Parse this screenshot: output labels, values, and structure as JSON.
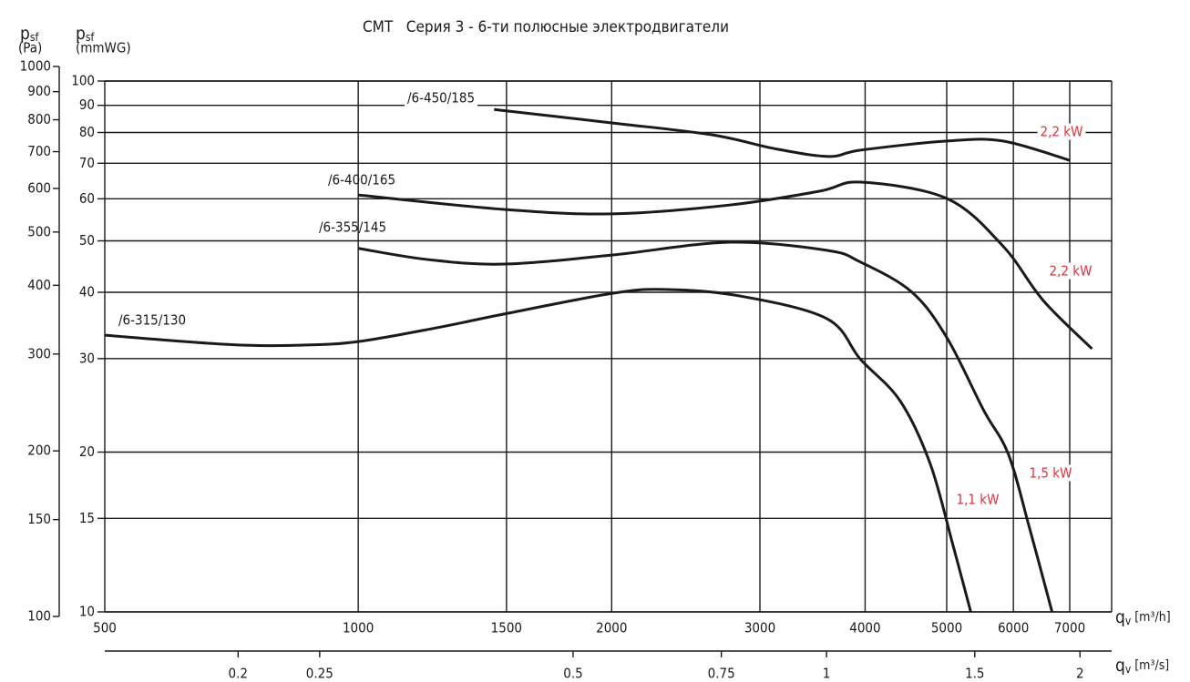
{
  "chart_data": {
    "type": "line",
    "title": "CMT   Серия 3 - 6-ти полюсные электродвигатели",
    "x_label": {
      "symbol": "q",
      "subscript": "v",
      "unit": "[m³/h]"
    },
    "x2_label": {
      "symbol": "q",
      "subscript": "v",
      "unit": "[m³/s]"
    },
    "y_label": {
      "symbol": "p",
      "subscript": "sf",
      "unit": "(mmWG)"
    },
    "y2_label": {
      "symbol": "p",
      "subscript": "sf",
      "unit": "(Pa)"
    },
    "xscale": "log",
    "yscale": "log",
    "xlim": [
      500,
      7850
    ],
    "xticks": [
      500,
      1000,
      1500,
      2000,
      3000,
      4000,
      5000,
      6000,
      7000
    ],
    "x2lim": [
      0.1389,
      2.181
    ],
    "x2ticks": [
      0.2,
      0.25,
      0.5,
      0.75,
      1,
      1.5,
      2
    ],
    "ylim": [
      10,
      100
    ],
    "yticks": [
      10,
      15,
      20,
      30,
      40,
      50,
      60,
      70,
      80,
      90,
      100
    ],
    "y2lim": [
      100,
      1000
    ],
    "y2ticks": [
      100,
      150,
      200,
      300,
      400,
      500,
      600,
      700,
      800,
      900,
      1000
    ],
    "grid": true,
    "series": [
      {
        "name": "/6-315/130",
        "color": "#1a1a1a",
        "x": [
          500,
          700,
          854,
          1000,
          1240,
          1490,
          2000,
          2310,
          2830,
          3600,
          3950,
          4400,
          4780,
          5090,
          5340
        ],
        "values": [
          33.2,
          31.9,
          31.8,
          32.3,
          34.3,
          36.4,
          39.8,
          40.5,
          39.4,
          35.7,
          29.9,
          25.0,
          19.0,
          13.3,
          10
        ]
      },
      {
        "name": "/6-355/145",
        "color": "#1a1a1a",
        "x": [
          1000,
          1210,
          1490,
          2000,
          2760,
          3600,
          3950,
          4540,
          5000,
          5530,
          5920,
          6270,
          6670
        ],
        "values": [
          48.4,
          46.1,
          45.2,
          47.0,
          49.7,
          48.0,
          45.6,
          40.1,
          32.9,
          24.0,
          19.8,
          14.4,
          10
        ]
      },
      {
        "name": "/6-400/165",
        "color": "#1a1a1a",
        "x": [
          1000,
          1490,
          2000,
          2760,
          3530,
          3950,
          5000,
          5830,
          6510,
          7440
        ],
        "values": [
          61.0,
          57.3,
          56.2,
          58.4,
          62.0,
          64.5,
          60.1,
          48.9,
          38.6,
          31.3
        ]
      },
      {
        "name": "/6-450/185",
        "color": "#1a1a1a",
        "x": [
          1450,
          2000,
          2630,
          3120,
          3620,
          3950,
          5000,
          5830,
          7000
        ],
        "values": [
          88.4,
          83.4,
          79.2,
          74.6,
          72.1,
          74.1,
          77.1,
          77.1,
          70.9
        ]
      }
    ],
    "annotations": [
      "2,2 kW",
      "2,2 kW",
      "1,5 kW",
      "1,1 kW"
    ],
    "annotation_color": "#e2303c"
  }
}
